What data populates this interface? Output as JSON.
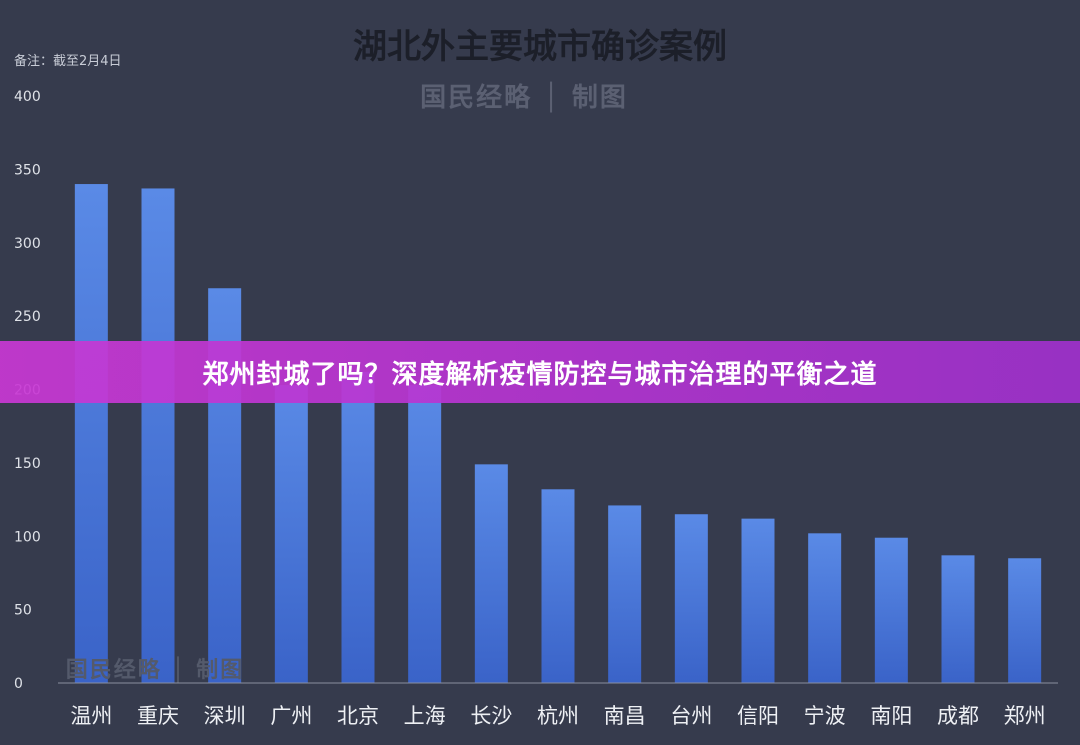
{
  "chart_data": {
    "type": "bar",
    "title": "湖北外主要城市确诊案例",
    "note": "备注：截至2月4日",
    "source": "国民经略 │ 制图",
    "categories": [
      "温州",
      "重庆",
      "深圳",
      "广州",
      "北京",
      "上海",
      "长沙",
      "杭州",
      "南昌",
      "台州",
      "信阳",
      "宁波",
      "南阳",
      "成都",
      "郑州"
    ],
    "values": [
      340,
      337,
      269,
      203,
      212,
      203,
      149,
      132,
      121,
      115,
      112,
      102,
      99,
      87,
      85
    ],
    "ylim": [
      0,
      400
    ],
    "yticks": [
      0,
      50,
      100,
      150,
      200,
      250,
      300,
      350,
      400
    ],
    "xlabel": "",
    "ylabel": "",
    "grid": false,
    "bar_color": "#4a78d8"
  },
  "banner": {
    "text": "郑州封城了吗？深度解析疫情防控与城市治理的平衡之道"
  }
}
